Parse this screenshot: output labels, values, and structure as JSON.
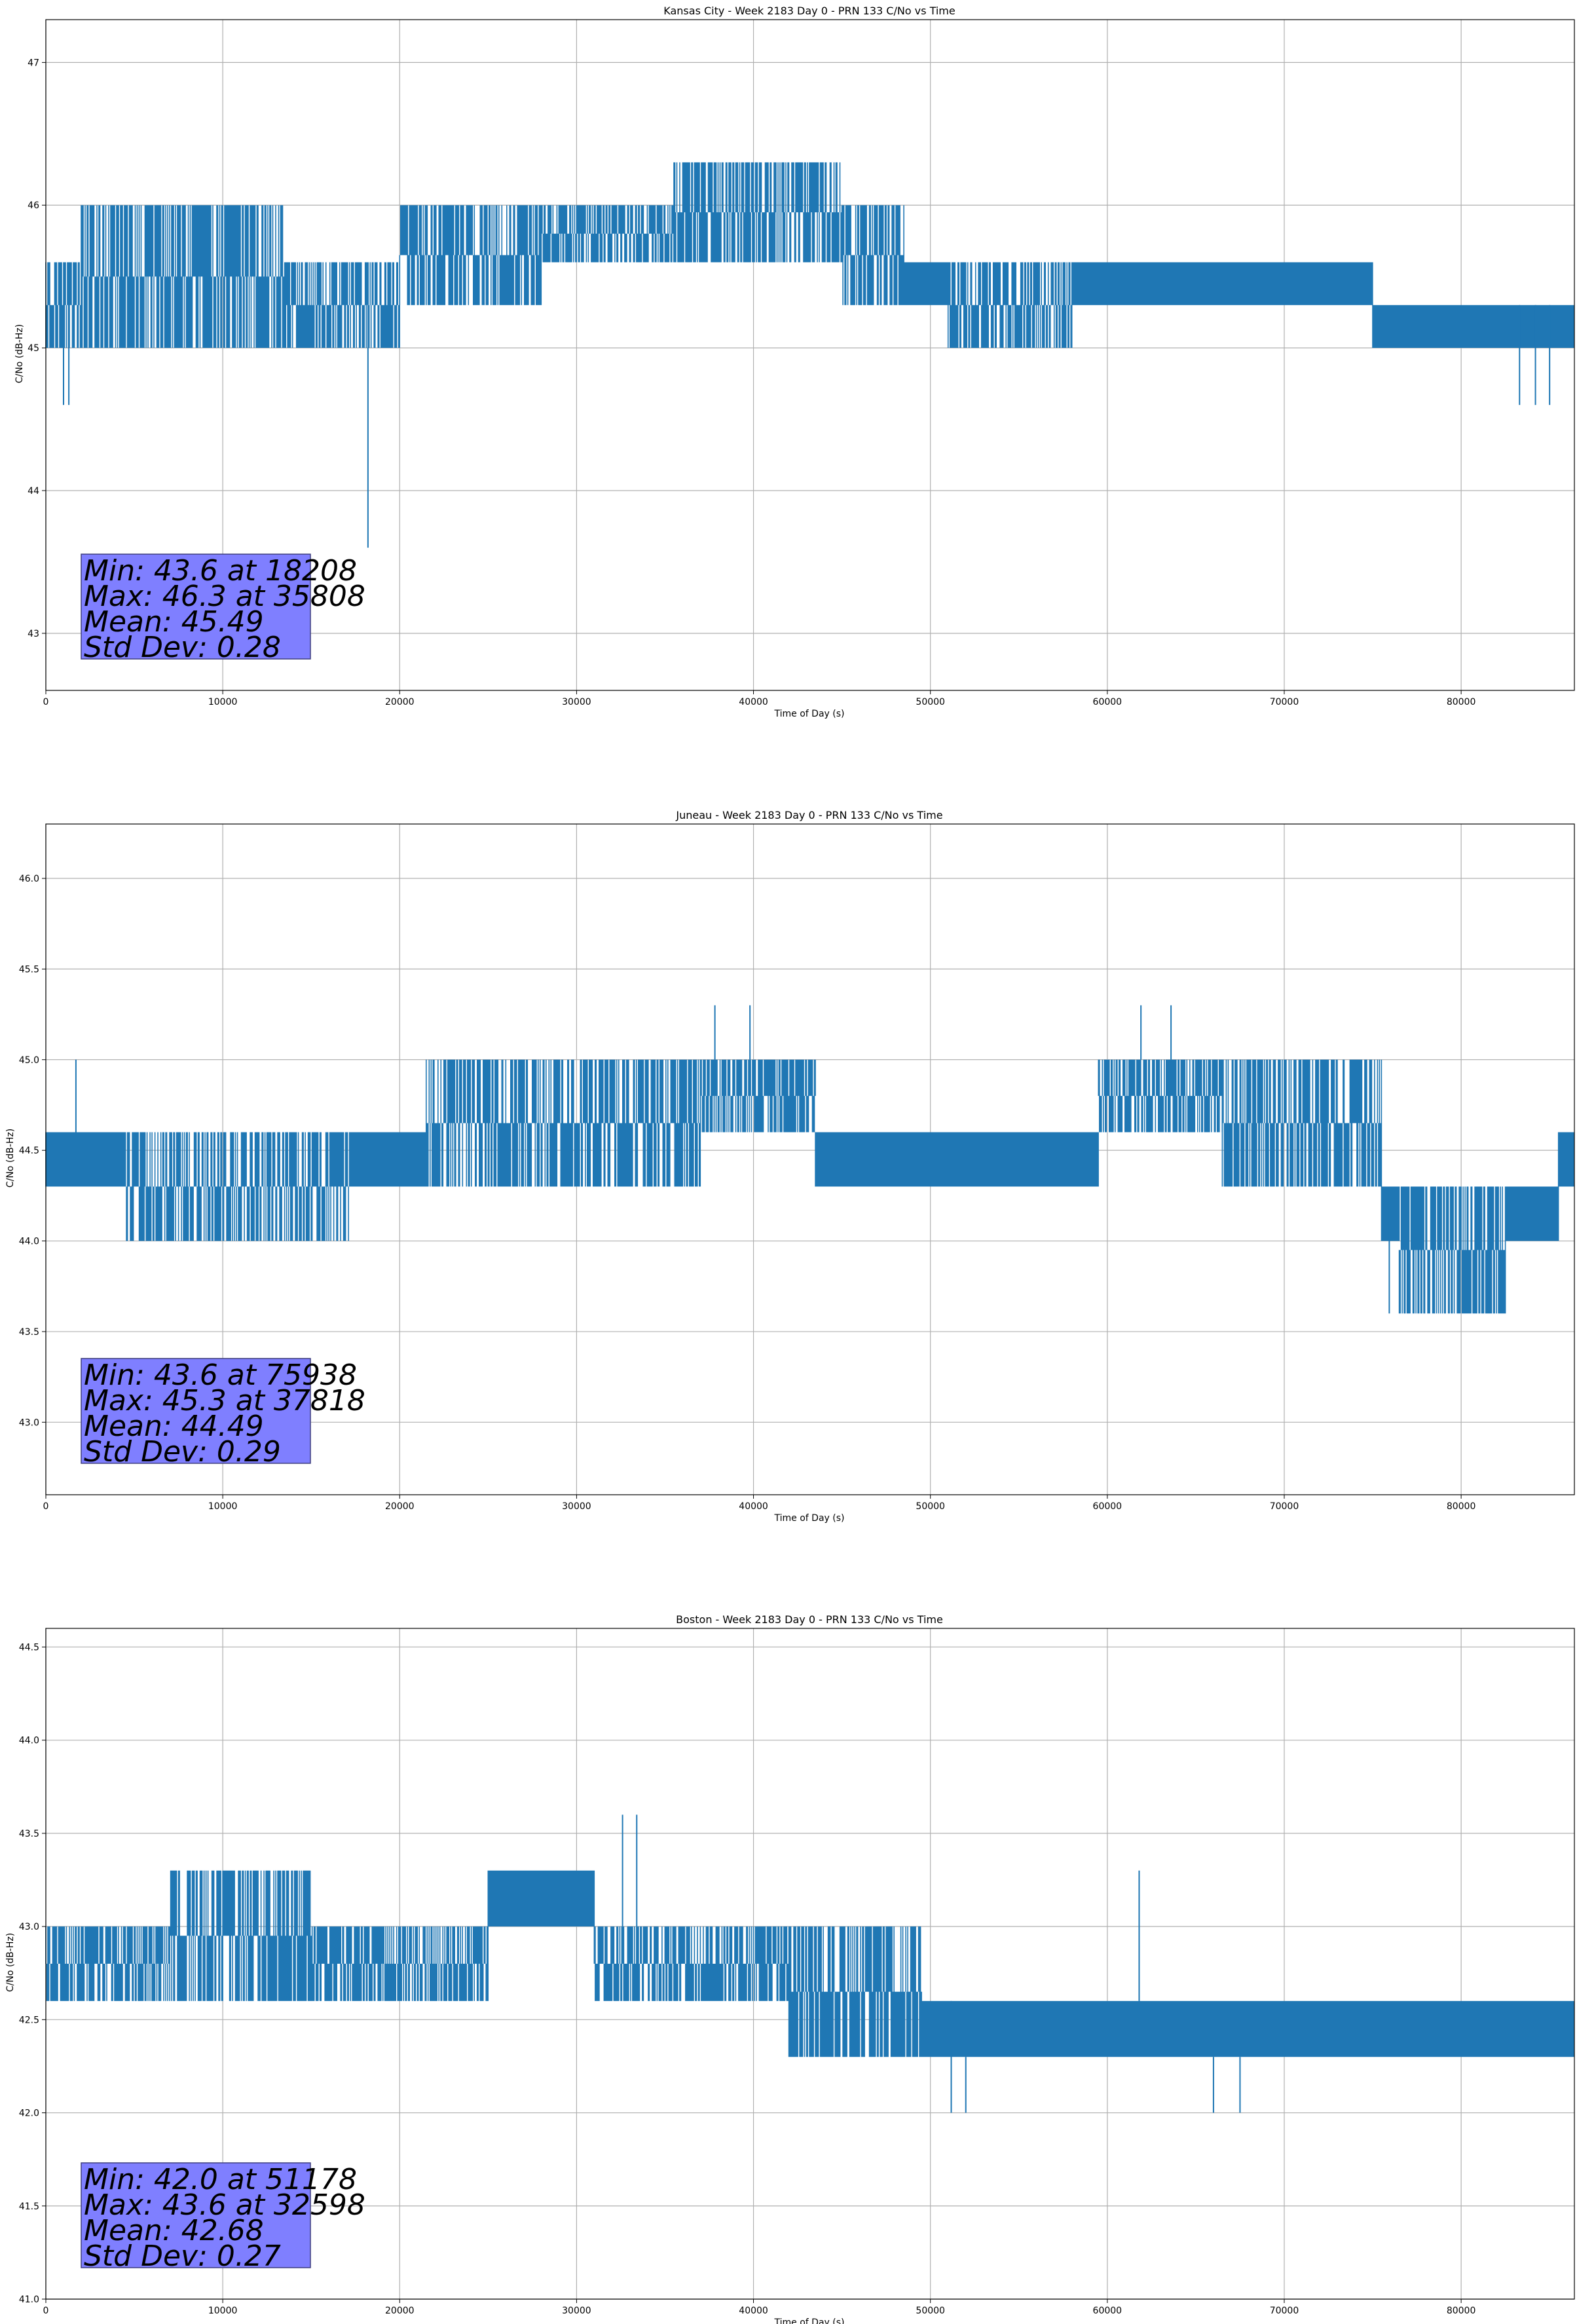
{
  "figure": {
    "background": "#ffffff"
  },
  "colors": {
    "series": "#1f77b4",
    "grid": "#b0b0b0",
    "stats_box_fill": "#7f7fff",
    "stats_box_edge": "#3f3f7f"
  },
  "chart_data": [
    {
      "type": "line",
      "title": "Kansas City - Week 2183 Day 0 - PRN 133 C/No vs Time",
      "xlabel": "Time of Day (s)",
      "ylabel": "C/No (dB-Hz)",
      "xlim": [
        0,
        86400
      ],
      "ylim": [
        42.6,
        47.3
      ],
      "xticks": [
        0,
        10000,
        20000,
        30000,
        40000,
        50000,
        60000,
        70000,
        80000
      ],
      "yticks": [
        43,
        44,
        45,
        46,
        47
      ],
      "grid": true,
      "stats_lines": [
        "Min: 43.6 at 18208",
        "Max: 46.3 at 35808",
        "Mean: 45.49",
        "Std Dev: 0.28"
      ],
      "series": [
        {
          "segments": [
            {
              "x_start": 0,
              "x_end": 2000,
              "low": 45.0,
              "high": 45.6
            },
            {
              "x_start": 2000,
              "x_end": 13500,
              "low": 45.0,
              "high": 46.0
            },
            {
              "x_start": 13500,
              "x_end": 20000,
              "low": 45.0,
              "high": 45.6
            },
            {
              "x_start": 20000,
              "x_end": 28000,
              "low": 45.3,
              "high": 46.0
            },
            {
              "x_start": 28000,
              "x_end": 35500,
              "low": 45.6,
              "high": 46.0
            },
            {
              "x_start": 35500,
              "x_end": 45000,
              "low": 45.6,
              "high": 46.3
            },
            {
              "x_start": 45000,
              "x_end": 48500,
              "low": 45.3,
              "high": 46.0
            },
            {
              "x_start": 48500,
              "x_end": 51000,
              "low": 45.3,
              "high": 45.6
            },
            {
              "x_start": 51000,
              "x_end": 58000,
              "low": 45.0,
              "high": 45.6
            },
            {
              "x_start": 58000,
              "x_end": 75000,
              "low": 45.3,
              "high": 45.6
            },
            {
              "x_start": 75000,
              "x_end": 86400,
              "low": 45.0,
              "high": 45.3
            }
          ],
          "spikes": [
            {
              "x": 1000,
              "low": 44.6,
              "high": 45.3
            },
            {
              "x": 1300,
              "low": 44.6,
              "high": 45.3
            },
            {
              "x": 18208,
              "low": 43.6,
              "high": 45.3
            },
            {
              "x": 83300,
              "low": 44.6,
              "high": 45.3
            },
            {
              "x": 84200,
              "low": 44.6,
              "high": 45.3
            },
            {
              "x": 85000,
              "low": 44.6,
              "high": 45.3
            }
          ]
        }
      ]
    },
    {
      "type": "line",
      "title": "Juneau - Week 2183 Day 0 - PRN 133 C/No vs Time",
      "xlabel": "Time of Day (s)",
      "ylabel": "C/No (dB-Hz)",
      "xlim": [
        0,
        86400
      ],
      "ylim": [
        42.6,
        46.3
      ],
      "xticks": [
        0,
        10000,
        20000,
        30000,
        40000,
        50000,
        60000,
        70000,
        80000
      ],
      "yticks": [
        43.0,
        43.5,
        44.0,
        44.5,
        45.0,
        45.5,
        46.0
      ],
      "grid": true,
      "stats_lines": [
        "Min: 43.6 at 75938",
        "Max: 45.3 at 37818",
        "Mean: 44.49",
        "Std Dev: 0.29"
      ],
      "series": [
        {
          "segments": [
            {
              "x_start": 0,
              "x_end": 4500,
              "low": 44.3,
              "high": 44.6
            },
            {
              "x_start": 4500,
              "x_end": 17200,
              "low": 44.0,
              "high": 44.6
            },
            {
              "x_start": 17200,
              "x_end": 21500,
              "low": 44.3,
              "high": 44.6
            },
            {
              "x_start": 21500,
              "x_end": 37000,
              "low": 44.3,
              "high": 45.0
            },
            {
              "x_start": 37000,
              "x_end": 43500,
              "low": 44.6,
              "high": 45.0
            },
            {
              "x_start": 43500,
              "x_end": 59500,
              "low": 44.3,
              "high": 44.6
            },
            {
              "x_start": 59500,
              "x_end": 66500,
              "low": 44.6,
              "high": 45.0
            },
            {
              "x_start": 66500,
              "x_end": 75500,
              "low": 44.3,
              "high": 45.0
            },
            {
              "x_start": 75500,
              "x_end": 76500,
              "low": 44.0,
              "high": 44.3
            },
            {
              "x_start": 76500,
              "x_end": 82500,
              "low": 43.6,
              "high": 44.3
            },
            {
              "x_start": 82500,
              "x_end": 85500,
              "low": 44.0,
              "high": 44.3
            },
            {
              "x_start": 85500,
              "x_end": 86400,
              "low": 44.3,
              "high": 44.6
            }
          ],
          "spikes": [
            {
              "x": 1700,
              "low": 44.6,
              "high": 45.0
            },
            {
              "x": 37818,
              "low": 45.0,
              "high": 45.3
            },
            {
              "x": 39800,
              "low": 45.0,
              "high": 45.3
            },
            {
              "x": 61900,
              "low": 45.0,
              "high": 45.3
            },
            {
              "x": 63600,
              "low": 45.0,
              "high": 45.3
            },
            {
              "x": 75938,
              "low": 43.6,
              "high": 44.3
            }
          ]
        }
      ]
    },
    {
      "type": "line",
      "title": "Boston - Week 2183 Day 0 - PRN 133 C/No vs Time",
      "xlabel": "Time of Day (s)",
      "ylabel": "C/No (dB-Hz)",
      "xlim": [
        0,
        86400
      ],
      "ylim": [
        41.0,
        44.6
      ],
      "xticks": [
        0,
        10000,
        20000,
        30000,
        40000,
        50000,
        60000,
        70000,
        80000
      ],
      "yticks": [
        41.0,
        41.5,
        42.0,
        42.5,
        43.0,
        43.5,
        44.0,
        44.5
      ],
      "grid": true,
      "stats_lines": [
        "Min: 42.0 at 51178",
        "Max: 43.6 at 32598",
        "Mean: 42.68",
        "Std Dev: 0.27"
      ],
      "series": [
        {
          "segments": [
            {
              "x_start": 0,
              "x_end": 7000,
              "low": 42.6,
              "high": 43.0
            },
            {
              "x_start": 7000,
              "x_end": 15000,
              "low": 42.6,
              "high": 43.3
            },
            {
              "x_start": 15000,
              "x_end": 25000,
              "low": 42.6,
              "high": 43.0
            },
            {
              "x_start": 25000,
              "x_end": 31000,
              "low": 43.0,
              "high": 43.3
            },
            {
              "x_start": 31000,
              "x_end": 42000,
              "low": 42.6,
              "high": 43.0
            },
            {
              "x_start": 42000,
              "x_end": 49500,
              "low": 42.3,
              "high": 43.0
            },
            {
              "x_start": 49500,
              "x_end": 59500,
              "low": 42.3,
              "high": 42.6
            },
            {
              "x_start": 59500,
              "x_end": 86400,
              "low": 42.3,
              "high": 42.6
            }
          ],
          "spikes": [
            {
              "x": 32598,
              "low": 43.0,
              "high": 43.6
            },
            {
              "x": 33400,
              "low": 43.0,
              "high": 43.6
            },
            {
              "x": 51178,
              "low": 42.0,
              "high": 42.6
            },
            {
              "x": 52000,
              "low": 42.0,
              "high": 42.3
            },
            {
              "x": 61800,
              "low": 42.6,
              "high": 43.3
            },
            {
              "x": 66000,
              "low": 42.0,
              "high": 42.3
            },
            {
              "x": 67500,
              "low": 42.0,
              "high": 42.3
            }
          ]
        }
      ]
    }
  ]
}
